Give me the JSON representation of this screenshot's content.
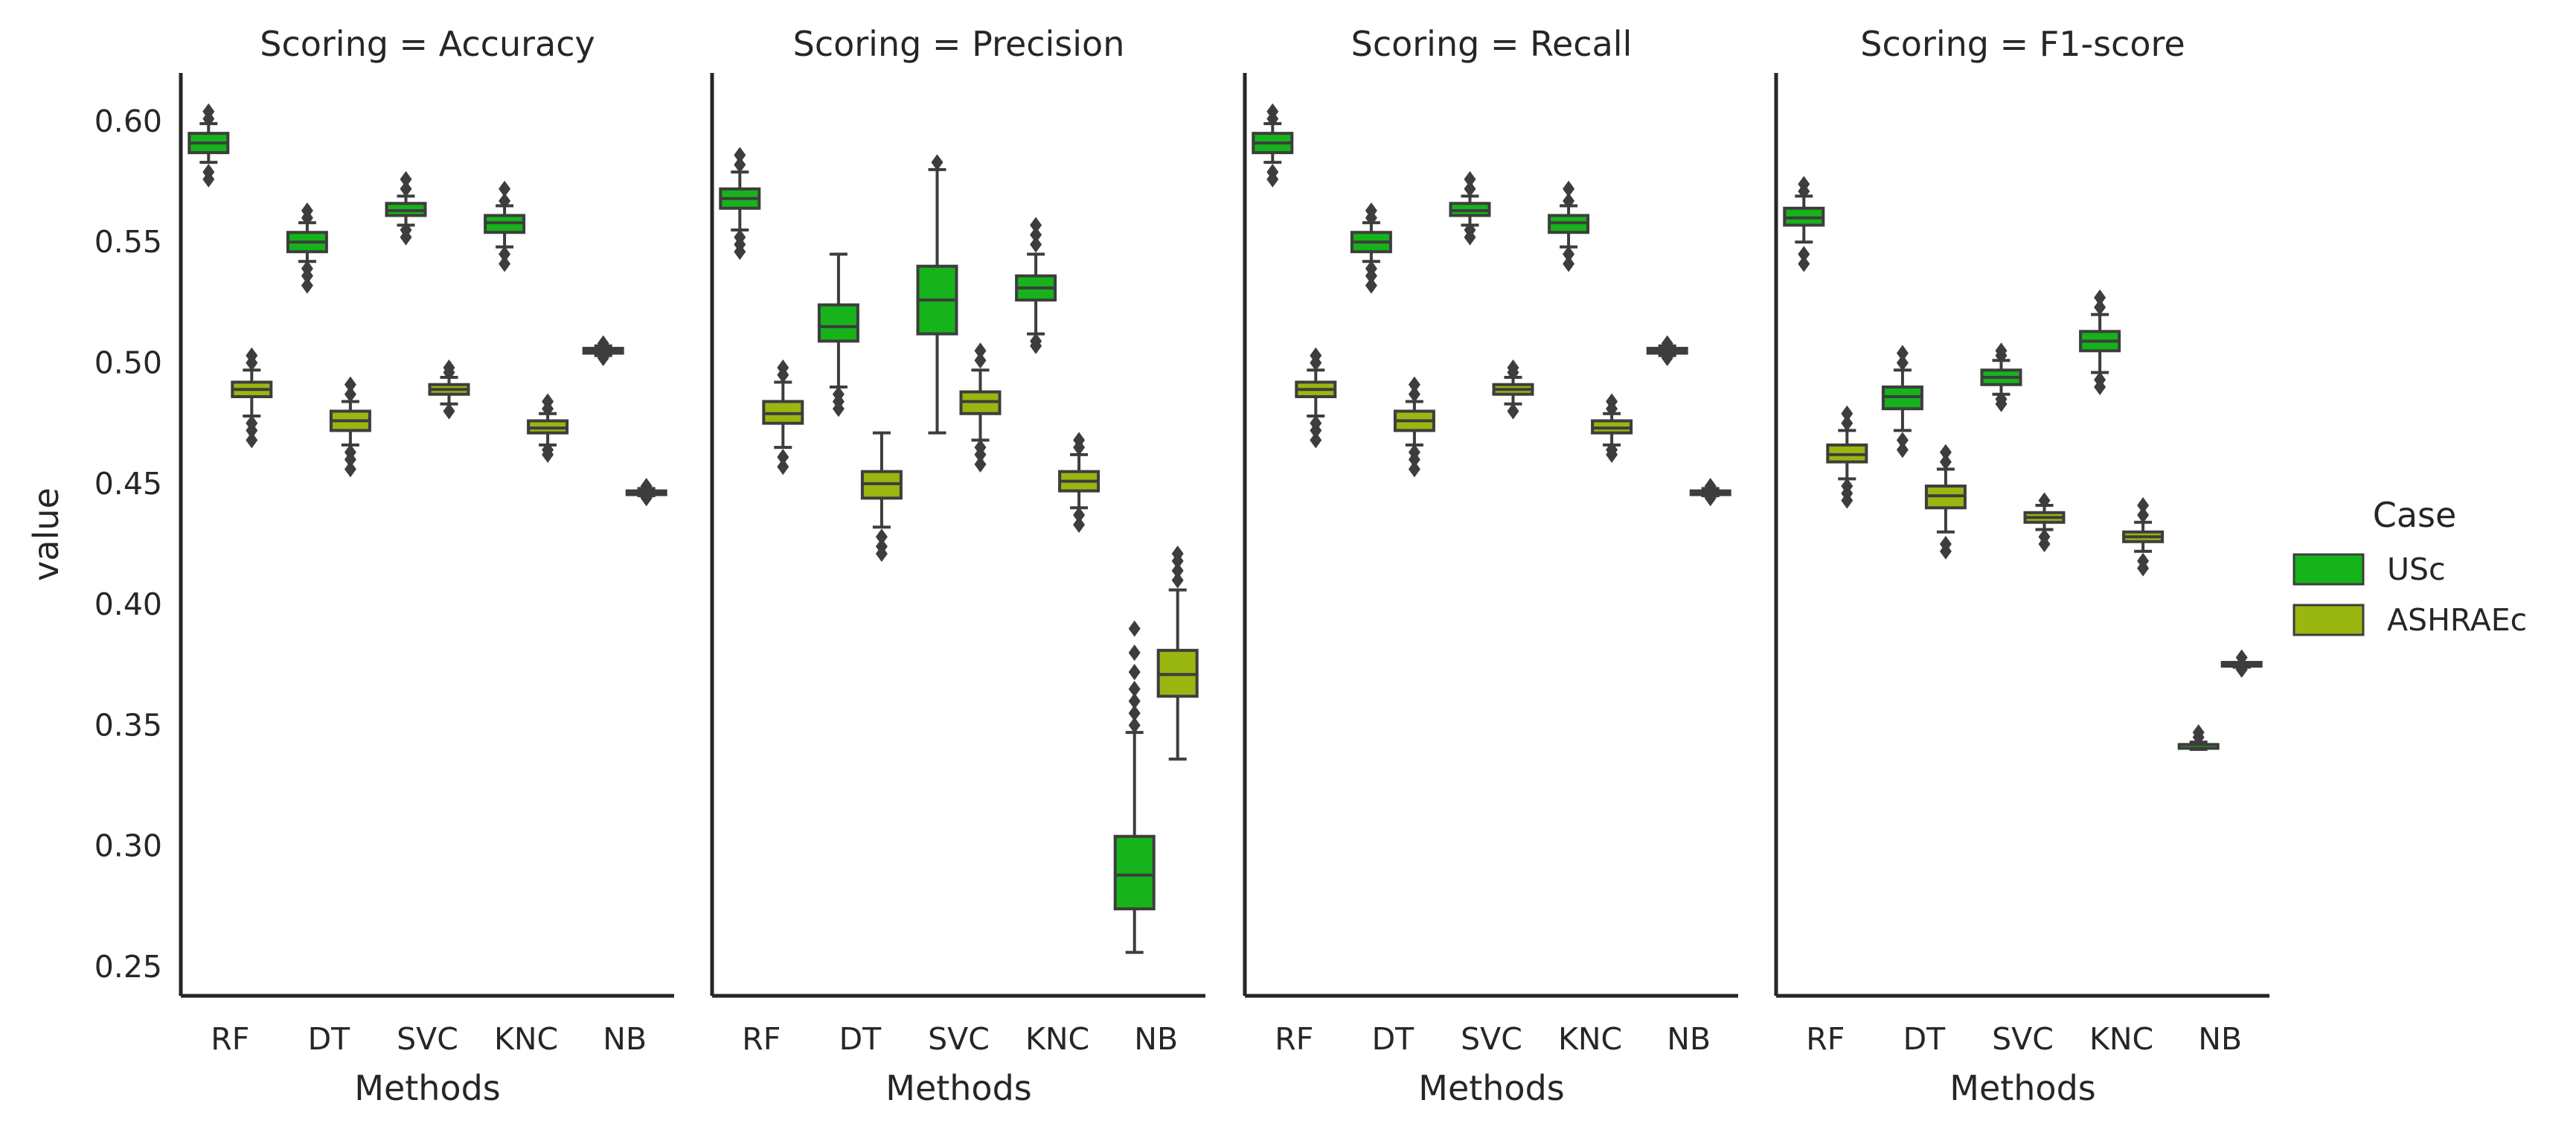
{
  "chart_data": {
    "type": "boxplot",
    "ylabel": "value",
    "xlabel": "Methods",
    "ylim": [
      0.238,
      0.62
    ],
    "yticks": [
      "0.25",
      "0.30",
      "0.35",
      "0.40",
      "0.45",
      "0.50",
      "0.55",
      "0.60"
    ],
    "categories": [
      "RF",
      "DT",
      "SVC",
      "KNC",
      "NB"
    ],
    "legend": {
      "title": "Case",
      "position": "right",
      "entries": [
        {
          "name": "USc",
          "color": "#16b31a"
        },
        {
          "name": "ASHRAEc",
          "color": "#99b611"
        }
      ]
    },
    "panels": [
      {
        "title": "Scoring = Accuracy",
        "series": [
          {
            "name": "USc",
            "boxes": [
              {
                "min": 0.583,
                "q1": 0.587,
                "median": 0.591,
                "q3": 0.595,
                "max": 0.599,
                "outliers": [
                  0.576,
                  0.579,
                  0.601,
                  0.604
                ]
              },
              {
                "min": 0.542,
                "q1": 0.546,
                "median": 0.55,
                "q3": 0.554,
                "max": 0.558,
                "outliers": [
                  0.532,
                  0.536,
                  0.539,
                  0.56,
                  0.563
                ]
              },
              {
                "min": 0.557,
                "q1": 0.561,
                "median": 0.563,
                "q3": 0.566,
                "max": 0.569,
                "outliers": [
                  0.552,
                  0.555,
                  0.572,
                  0.576
                ]
              },
              {
                "min": 0.548,
                "q1": 0.554,
                "median": 0.558,
                "q3": 0.561,
                "max": 0.565,
                "outliers": [
                  0.541,
                  0.545,
                  0.567,
                  0.572
                ]
              },
              {
                "min": 0.503,
                "q1": 0.504,
                "median": 0.505,
                "q3": 0.506,
                "max": 0.507,
                "outliers": [
                  0.502,
                  0.508
                ]
              }
            ]
          },
          {
            "name": "ASHRAEc",
            "boxes": [
              {
                "min": 0.478,
                "q1": 0.486,
                "median": 0.489,
                "q3": 0.492,
                "max": 0.497,
                "outliers": [
                  0.468,
                  0.472,
                  0.475,
                  0.5,
                  0.503
                ]
              },
              {
                "min": 0.466,
                "q1": 0.472,
                "median": 0.476,
                "q3": 0.48,
                "max": 0.484,
                "outliers": [
                  0.456,
                  0.46,
                  0.463,
                  0.487,
                  0.491
                ]
              },
              {
                "min": 0.483,
                "q1": 0.487,
                "median": 0.489,
                "q3": 0.491,
                "max": 0.494,
                "outliers": [
                  0.48,
                  0.496,
                  0.498
                ]
              },
              {
                "min": 0.466,
                "q1": 0.471,
                "median": 0.473,
                "q3": 0.476,
                "max": 0.479,
                "outliers": [
                  0.462,
                  0.464,
                  0.481,
                  0.484
                ]
              },
              {
                "min": 0.445,
                "q1": 0.446,
                "median": 0.446,
                "q3": 0.447,
                "max": 0.448,
                "outliers": [
                  0.444,
                  0.449
                ]
              }
            ]
          }
        ]
      },
      {
        "title": "Scoring = Precision",
        "series": [
          {
            "name": "USc",
            "boxes": [
              {
                "min": 0.555,
                "q1": 0.564,
                "median": 0.568,
                "q3": 0.572,
                "max": 0.579,
                "outliers": [
                  0.546,
                  0.549,
                  0.552,
                  0.582,
                  0.586
                ]
              },
              {
                "min": 0.49,
                "q1": 0.509,
                "median": 0.515,
                "q3": 0.524,
                "max": 0.545,
                "outliers": [
                  0.481,
                  0.484,
                  0.487
                ]
              },
              {
                "min": 0.471,
                "q1": 0.512,
                "median": 0.526,
                "q3": 0.54,
                "max": 0.58,
                "outliers": [
                  0.583
                ]
              },
              {
                "min": 0.512,
                "q1": 0.526,
                "median": 0.531,
                "q3": 0.536,
                "max": 0.545,
                "outliers": [
                  0.507,
                  0.509,
                  0.549,
                  0.553,
                  0.557
                ]
              },
              {
                "min": 0.256,
                "q1": 0.274,
                "median": 0.288,
                "q3": 0.304,
                "max": 0.347,
                "outliers": [
                  0.35,
                  0.355,
                  0.36,
                  0.365,
                  0.372,
                  0.38,
                  0.39
                ]
              }
            ]
          },
          {
            "name": "ASHRAEc",
            "boxes": [
              {
                "min": 0.465,
                "q1": 0.475,
                "median": 0.479,
                "q3": 0.484,
                "max": 0.492,
                "outliers": [
                  0.457,
                  0.461,
                  0.495,
                  0.498
                ]
              },
              {
                "min": 0.432,
                "q1": 0.444,
                "median": 0.45,
                "q3": 0.455,
                "max": 0.471,
                "outliers": [
                  0.421,
                  0.424,
                  0.428
                ]
              },
              {
                "min": 0.468,
                "q1": 0.479,
                "median": 0.484,
                "q3": 0.488,
                "max": 0.497,
                "outliers": [
                  0.458,
                  0.462,
                  0.465,
                  0.501,
                  0.505
                ]
              },
              {
                "min": 0.44,
                "q1": 0.447,
                "median": 0.451,
                "q3": 0.455,
                "max": 0.462,
                "outliers": [
                  0.433,
                  0.437,
                  0.465,
                  0.468
                ]
              },
              {
                "min": 0.336,
                "q1": 0.362,
                "median": 0.371,
                "q3": 0.381,
                "max": 0.406,
                "outliers": [
                  0.41,
                  0.414,
                  0.418,
                  0.421
                ]
              }
            ]
          }
        ]
      },
      {
        "title": "Scoring = Recall",
        "series": [
          {
            "name": "USc",
            "boxes": [
              {
                "min": 0.583,
                "q1": 0.587,
                "median": 0.591,
                "q3": 0.595,
                "max": 0.599,
                "outliers": [
                  0.576,
                  0.579,
                  0.601,
                  0.604
                ]
              },
              {
                "min": 0.542,
                "q1": 0.546,
                "median": 0.55,
                "q3": 0.554,
                "max": 0.558,
                "outliers": [
                  0.532,
                  0.536,
                  0.539,
                  0.56,
                  0.563
                ]
              },
              {
                "min": 0.557,
                "q1": 0.561,
                "median": 0.563,
                "q3": 0.566,
                "max": 0.569,
                "outliers": [
                  0.552,
                  0.555,
                  0.572,
                  0.576
                ]
              },
              {
                "min": 0.548,
                "q1": 0.554,
                "median": 0.558,
                "q3": 0.561,
                "max": 0.565,
                "outliers": [
                  0.541,
                  0.545,
                  0.567,
                  0.572
                ]
              },
              {
                "min": 0.503,
                "q1": 0.504,
                "median": 0.505,
                "q3": 0.506,
                "max": 0.507,
                "outliers": [
                  0.502,
                  0.508
                ]
              }
            ]
          },
          {
            "name": "ASHRAEc",
            "boxes": [
              {
                "min": 0.478,
                "q1": 0.486,
                "median": 0.489,
                "q3": 0.492,
                "max": 0.497,
                "outliers": [
                  0.468,
                  0.472,
                  0.475,
                  0.5,
                  0.503
                ]
              },
              {
                "min": 0.466,
                "q1": 0.472,
                "median": 0.476,
                "q3": 0.48,
                "max": 0.484,
                "outliers": [
                  0.456,
                  0.46,
                  0.463,
                  0.487,
                  0.491
                ]
              },
              {
                "min": 0.483,
                "q1": 0.487,
                "median": 0.489,
                "q3": 0.491,
                "max": 0.494,
                "outliers": [
                  0.48,
                  0.496,
                  0.498
                ]
              },
              {
                "min": 0.466,
                "q1": 0.471,
                "median": 0.473,
                "q3": 0.476,
                "max": 0.479,
                "outliers": [
                  0.462,
                  0.464,
                  0.481,
                  0.484
                ]
              },
              {
                "min": 0.445,
                "q1": 0.446,
                "median": 0.446,
                "q3": 0.447,
                "max": 0.448,
                "outliers": [
                  0.444,
                  0.449
                ]
              }
            ]
          }
        ]
      },
      {
        "title": "Scoring = F1-score",
        "series": [
          {
            "name": "USc",
            "boxes": [
              {
                "min": 0.55,
                "q1": 0.557,
                "median": 0.56,
                "q3": 0.564,
                "max": 0.569,
                "outliers": [
                  0.541,
                  0.545,
                  0.571,
                  0.574
                ]
              },
              {
                "min": 0.472,
                "q1": 0.481,
                "median": 0.486,
                "q3": 0.49,
                "max": 0.497,
                "outliers": [
                  0.464,
                  0.468,
                  0.5,
                  0.504
                ]
              },
              {
                "min": 0.487,
                "q1": 0.491,
                "median": 0.494,
                "q3": 0.497,
                "max": 0.501,
                "outliers": [
                  0.483,
                  0.485,
                  0.503,
                  0.505
                ]
              },
              {
                "min": 0.496,
                "q1": 0.505,
                "median": 0.509,
                "q3": 0.513,
                "max": 0.52,
                "outliers": [
                  0.49,
                  0.493,
                  0.523,
                  0.527
                ]
              },
              {
                "min": 0.34,
                "q1": 0.341,
                "median": 0.342,
                "q3": 0.342,
                "max": 0.343,
                "outliers": [
                  0.345,
                  0.347
                ]
              }
            ]
          },
          {
            "name": "ASHRAEc",
            "boxes": [
              {
                "min": 0.452,
                "q1": 0.459,
                "median": 0.462,
                "q3": 0.466,
                "max": 0.472,
                "outliers": [
                  0.443,
                  0.446,
                  0.449,
                  0.475,
                  0.479
                ]
              },
              {
                "min": 0.43,
                "q1": 0.44,
                "median": 0.445,
                "q3": 0.449,
                "max": 0.456,
                "outliers": [
                  0.422,
                  0.425,
                  0.459,
                  0.463
                ]
              },
              {
                "min": 0.431,
                "q1": 0.434,
                "median": 0.436,
                "q3": 0.438,
                "max": 0.441,
                "outliers": [
                  0.425,
                  0.428,
                  0.443
                ]
              },
              {
                "min": 0.422,
                "q1": 0.426,
                "median": 0.428,
                "q3": 0.43,
                "max": 0.434,
                "outliers": [
                  0.415,
                  0.418,
                  0.437,
                  0.441
                ]
              },
              {
                "min": 0.374,
                "q1": 0.375,
                "median": 0.375,
                "q3": 0.376,
                "max": 0.376,
                "outliers": [
                  0.373,
                  0.378
                ]
              }
            ]
          }
        ]
      }
    ]
  }
}
